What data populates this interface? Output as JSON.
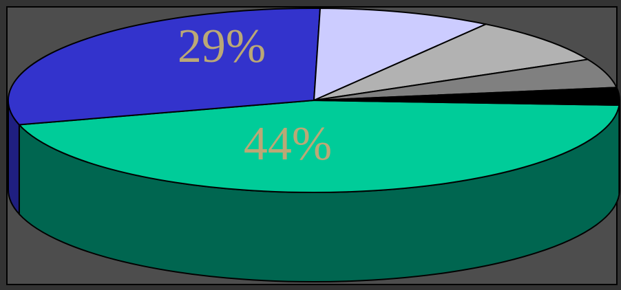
{
  "chart_data": {
    "type": "pie",
    "style": "3d",
    "legend": "none",
    "slices": [
      {
        "label": "44%",
        "value": 44,
        "top_color": "#00CC99",
        "side_color": "#006650",
        "label_color": "#BBA876"
      },
      {
        "label": "29%",
        "value": 29,
        "top_color": "#3333CC",
        "side_color": "#1F1F80",
        "label_color": "#BBA876"
      },
      {
        "label": "",
        "value": 9,
        "top_color": "#CCCCFF",
        "side_color": "#8A8AB8"
      },
      {
        "label": "",
        "value": 8,
        "top_color": "#B2B2B2",
        "side_color": "#7A7A7A"
      },
      {
        "label": "",
        "value": 5,
        "top_color": "#808080",
        "side_color": "#555555"
      },
      {
        "label": "",
        "value": 3,
        "top_color": "#000000",
        "side_color": "#000000"
      }
    ]
  },
  "colors": {
    "background": "#333333",
    "plot_area": "#4D4D4D",
    "outline": "#000000"
  }
}
